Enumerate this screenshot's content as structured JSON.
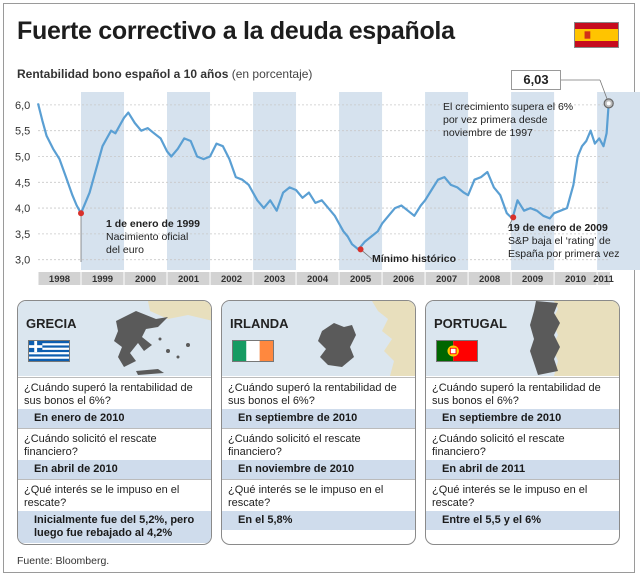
{
  "title": "Fuerte correctivo a la deuda española",
  "subtitle": {
    "bold": "Rentabilidad bono español a 10 años",
    "unit": "(en porcentaje)"
  },
  "colors": {
    "line": "#5a9fd3",
    "band": "#d6e2ee",
    "marker": "#d9312b",
    "answer_bg": "#cfdcec",
    "map_sea": "#dbe6ef",
    "map_land": "#e8dfbd",
    "map_country": "#5a5a5a"
  },
  "chart_data": {
    "type": "line",
    "title": "Rentabilidad bono español a 10 años",
    "ylabel": "(en porcentaje)",
    "xlabel": "",
    "ylim": [
      2.8,
      6.25
    ],
    "yticks": [
      "6,0",
      "5,5",
      "5,0",
      "4,5",
      "4,0",
      "3,5",
      "3,0"
    ],
    "ytick_values": [
      6.0,
      5.5,
      5.0,
      4.5,
      4.0,
      3.5,
      3.0
    ],
    "x_range": [
      1998.0,
      2011.3
    ],
    "categories": [
      "1998",
      "1999",
      "2000",
      "2001",
      "2002",
      "2003",
      "2004",
      "2005",
      "2006",
      "2007",
      "2008",
      "2009",
      "2010",
      "2011"
    ],
    "grid": true,
    "series": [
      {
        "x": [
          1998.0,
          1998.1,
          1998.2,
          1998.35,
          1998.5,
          1998.65,
          1998.8,
          1998.9,
          1999.0,
          1999.1,
          1999.2,
          1999.3,
          1999.4,
          1999.5,
          1999.6,
          1999.7,
          1999.8,
          1999.9,
          2000.0,
          2000.1,
          2000.25,
          2000.4,
          2000.55,
          2000.7,
          2000.85,
          2001.0,
          2001.1,
          2001.25,
          2001.4,
          2001.55,
          2001.7,
          2001.85,
          2002.0,
          2002.15,
          2002.3,
          2002.45,
          2002.6,
          2002.75,
          2002.9,
          2003.0,
          2003.1,
          2003.25,
          2003.4,
          2003.55,
          2003.7,
          2003.85,
          2004.0,
          2004.15,
          2004.3,
          2004.45,
          2004.6,
          2004.75,
          2004.9,
          2005.0,
          2005.1,
          2005.2,
          2005.3,
          2005.45,
          2005.6,
          2005.75,
          2005.9,
          2006.0,
          2006.15,
          2006.3,
          2006.45,
          2006.6,
          2006.75,
          2006.9,
          2007.0,
          2007.15,
          2007.3,
          2007.45,
          2007.6,
          2007.75,
          2007.9,
          2008.0,
          2008.15,
          2008.3,
          2008.45,
          2008.6,
          2008.75,
          2008.9,
          2009.0,
          2009.05,
          2009.15,
          2009.3,
          2009.45,
          2009.6,
          2009.75,
          2009.9,
          2010.0,
          2010.15,
          2010.3,
          2010.45,
          2010.55,
          2010.65,
          2010.75,
          2010.85,
          2010.95,
          2011.05,
          2011.15,
          2011.22,
          2011.27
        ],
        "y": [
          6.03,
          5.7,
          5.4,
          5.15,
          4.95,
          4.6,
          4.25,
          4.05,
          3.9,
          4.1,
          4.3,
          4.6,
          4.9,
          5.2,
          5.35,
          5.5,
          5.45,
          5.6,
          5.75,
          5.85,
          5.65,
          5.5,
          5.55,
          5.45,
          5.35,
          5.1,
          5.0,
          5.15,
          5.35,
          5.3,
          5.0,
          4.95,
          5.0,
          5.25,
          5.2,
          4.95,
          4.6,
          4.55,
          4.45,
          4.3,
          4.15,
          4.0,
          4.15,
          3.95,
          4.3,
          4.4,
          4.35,
          4.2,
          4.3,
          4.1,
          4.15,
          4.0,
          3.85,
          3.7,
          3.55,
          3.45,
          3.3,
          3.2,
          3.35,
          3.45,
          3.55,
          3.7,
          3.85,
          4.0,
          4.05,
          3.95,
          3.85,
          4.05,
          4.15,
          4.35,
          4.55,
          4.6,
          4.45,
          4.4,
          4.3,
          4.25,
          4.55,
          4.6,
          4.7,
          4.4,
          4.25,
          3.9,
          3.82,
          3.85,
          4.15,
          3.95,
          4.0,
          3.95,
          3.85,
          3.8,
          3.9,
          3.95,
          4.0,
          4.45,
          5.0,
          5.2,
          5.3,
          5.5,
          5.25,
          5.35,
          5.2,
          5.45,
          6.03
        ]
      }
    ],
    "markers": [
      {
        "x": 1999.0,
        "y": 3.9,
        "date": "1 de enero de 1999",
        "text": "Nacimiento oficial del euro"
      },
      {
        "x": 2005.5,
        "y": 3.2,
        "text": "Mínimo histórico"
      },
      {
        "x": 2009.05,
        "y": 3.82,
        "date": "19 de enero de 2009",
        "text": "S&P baja el ‘rating’ de España por primera vez"
      },
      {
        "x": 2011.27,
        "y": 6.03,
        "value": "6,03",
        "text": "El crecimiento supera el 6% por vez primera desde noviembre de 1997"
      }
    ]
  },
  "callouts": {
    "euro": {
      "date": "1 de enero de 1999",
      "line1": "Nacimiento oficial",
      "line2": "del euro"
    },
    "minimo": {
      "text": "Mínimo histórico"
    },
    "sp": {
      "date": "19 de enero de 2009",
      "line1": "S&P baja el ‘rating’ de",
      "line2": "España por primera vez"
    },
    "peak": {
      "value": "6,03",
      "line1": "El crecimiento supera el 6%",
      "line2": "por vez primera desde",
      "line3": "noviembre de 1997"
    }
  },
  "panels": [
    {
      "name": "GRECIA",
      "q1": "¿Cuándo superó la rentabilidad de sus bonos el 6%?",
      "a1": "En enero de 2010",
      "q2": "¿Cuándo solicitó el rescate financiero?",
      "a2": "En abril de 2010",
      "q3": "¿Qué interés se le impuso en el rescate?",
      "a3": "Inicialmente fue del 5,2%, pero luego fue rebajado al 4,2%"
    },
    {
      "name": "IRLANDA",
      "q1": "¿Cuándo superó la rentabilidad de sus bonos el 6%?",
      "a1": "En septiembre de 2010",
      "q2": "¿Cuándo solicitó el rescate financiero?",
      "a2": "En noviembre de 2010",
      "q3": "¿Qué interés se le impuso en el rescate?",
      "a3": "En el 5,8%"
    },
    {
      "name": "PORTUGAL",
      "q1": "¿Cuándo superó la rentabilidad de sus bonos el 6%?",
      "a1": "En septiembre de 2010",
      "q2": "¿Cuándo solicitó el rescate financiero?",
      "a2": "En abril de 2011",
      "q3": "¿Qué interés se le impuso en el rescate?",
      "a3": "Entre el 5,5 y el 6%"
    }
  ],
  "source": "Fuente: Bloomberg."
}
